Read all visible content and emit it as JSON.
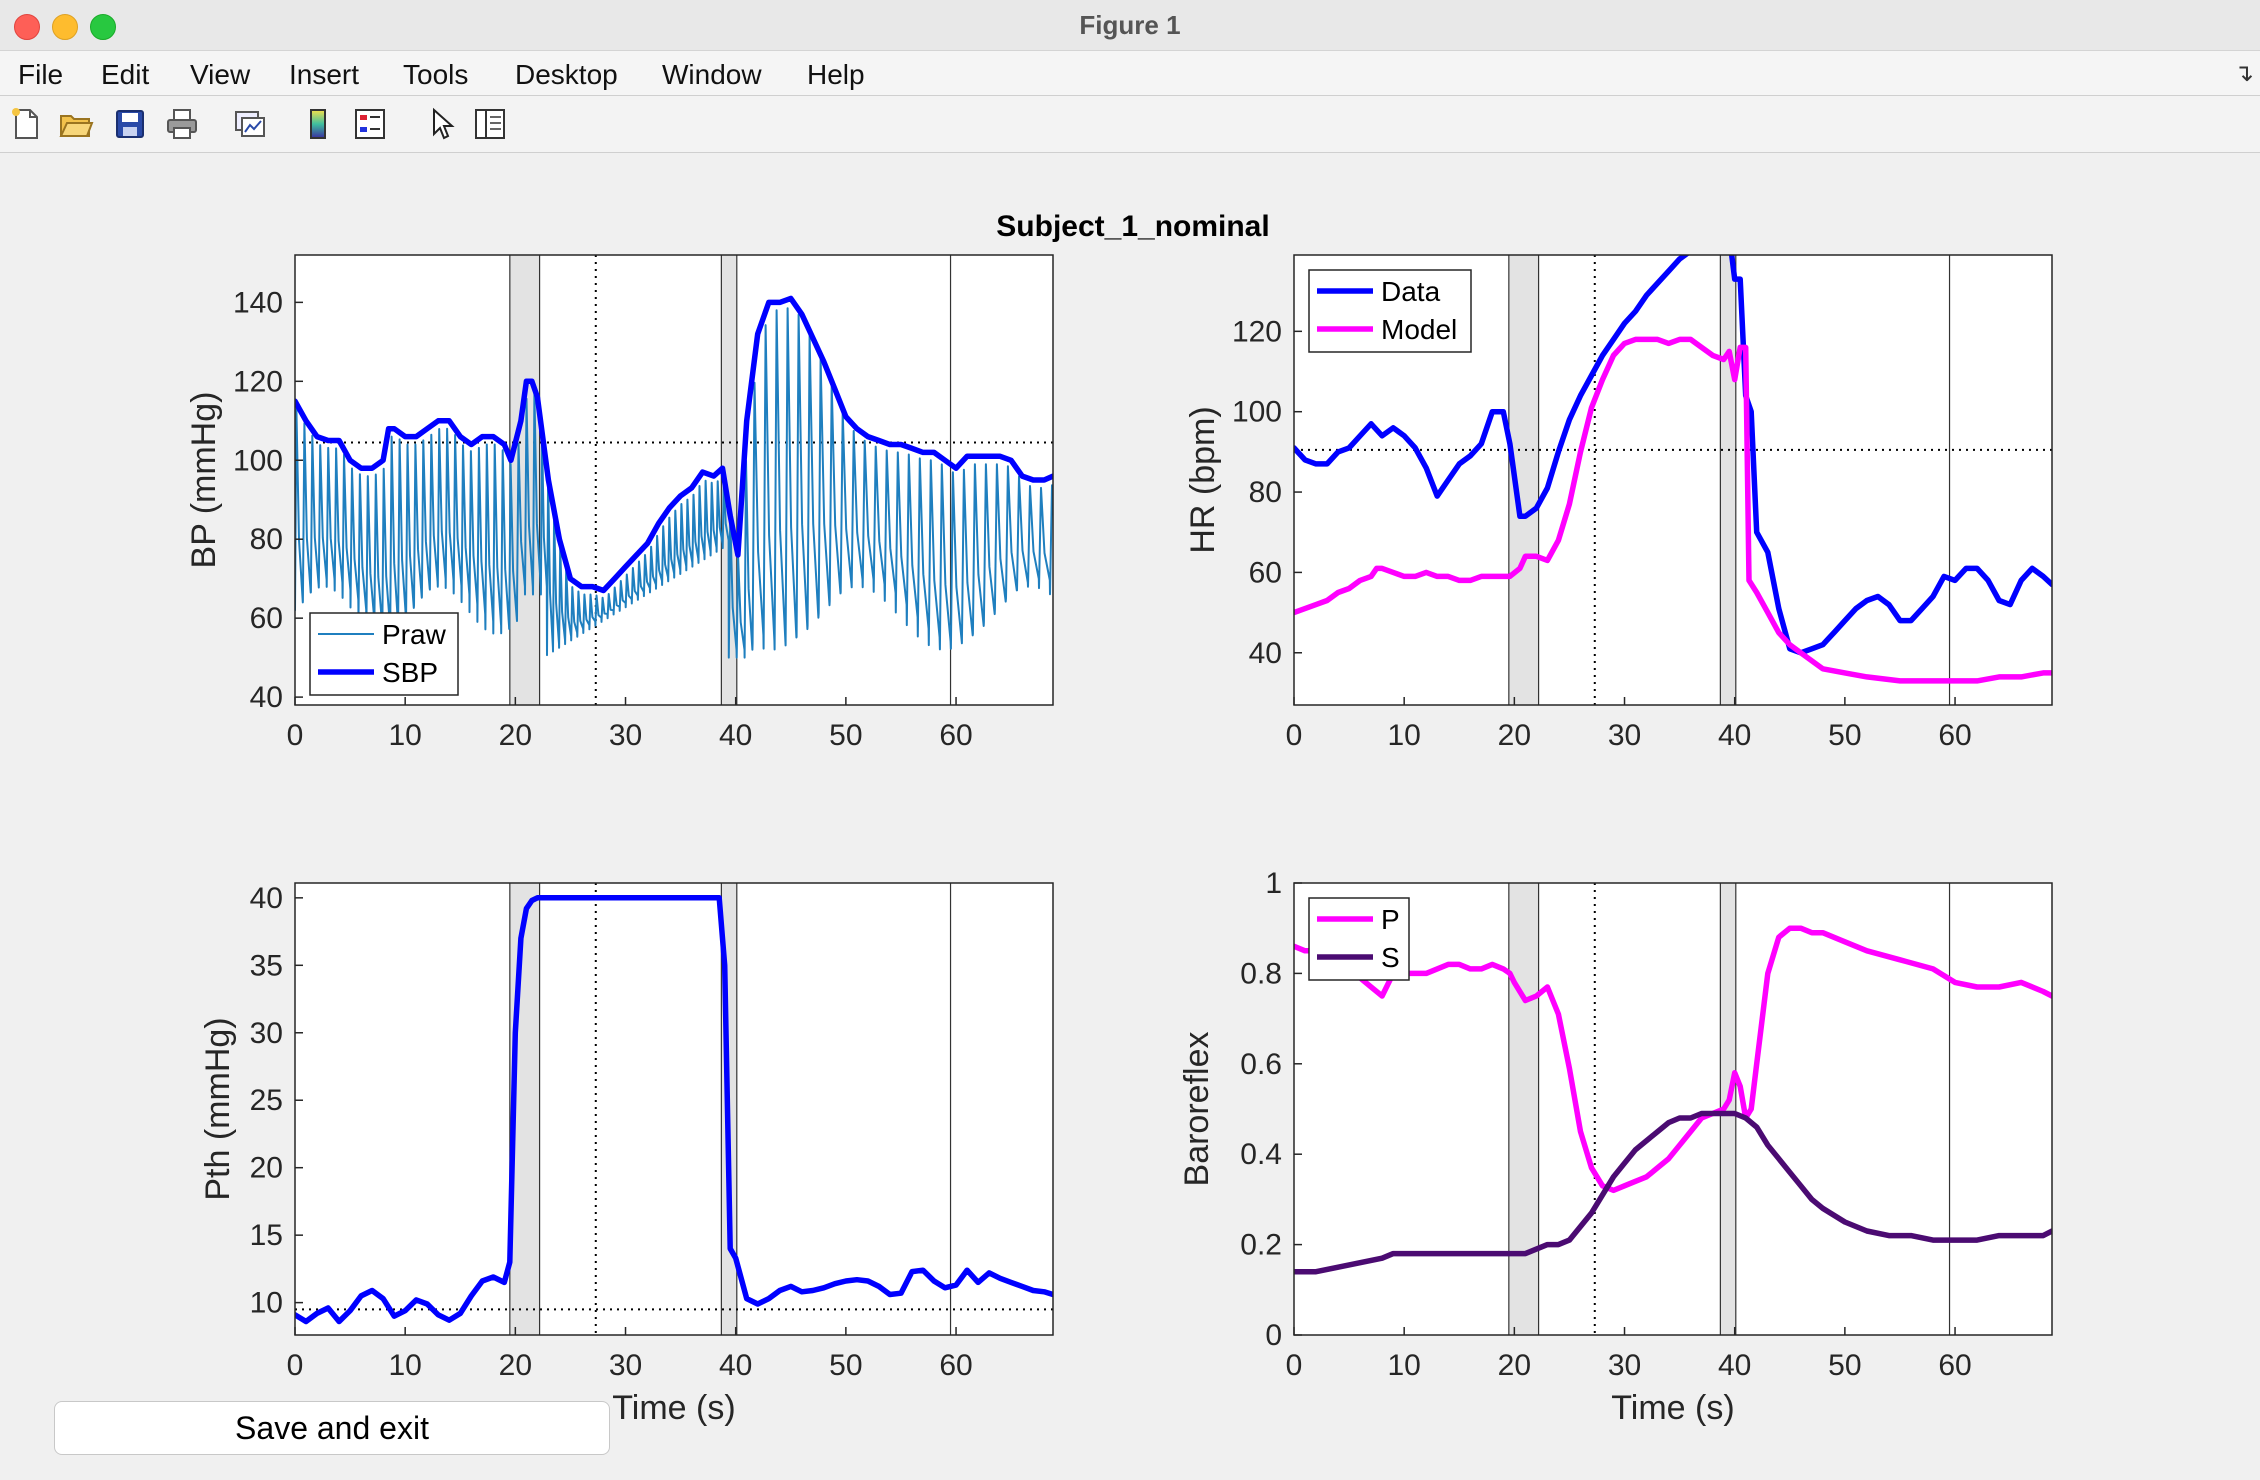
{
  "window": {
    "title": "Figure 1"
  },
  "menu": [
    "File",
    "Edit",
    "View",
    "Insert",
    "Tools",
    "Desktop",
    "Window",
    "Help"
  ],
  "toolbar_icons": [
    "new-figure-icon",
    "open-file-icon",
    "save-icon",
    "print-icon",
    "link-plot-icon",
    "colorbar-icon",
    "legend-icon",
    "pointer-icon",
    "property-inspector-icon"
  ],
  "save_button": {
    "label": "Save and exit"
  },
  "chart_data": {
    "suptitle": "Subject_1_nominal",
    "colors": {
      "blue": "#0000ff",
      "magenta": "#ff00ff",
      "raw": "#1f7fbf",
      "purple": "#4b0b72",
      "shade": "#e3e3e3",
      "axes_bg": "#ffffff"
    },
    "markers": {
      "shaded_spans": [
        [
          19.5,
          22.2
        ],
        [
          38.7,
          40.1
        ]
      ],
      "boundary_lines": [
        19.5,
        22.2,
        38.7,
        40.1,
        59.5
      ],
      "dotted_vertical": 27.3
    },
    "panels": [
      {
        "id": "bp",
        "type": "line",
        "xlabel": "",
        "ylabel": "BP (mmHg)",
        "xlim": [
          0,
          68.8
        ],
        "ylim": [
          38,
          152
        ],
        "xticks": [
          0,
          10,
          20,
          30,
          40,
          50,
          60
        ],
        "yticks": [
          40,
          60,
          80,
          100,
          120,
          140
        ],
        "hline": 104.5,
        "legend": {
          "location": "bottom-left",
          "entries": [
            "Praw",
            "SBP"
          ]
        },
        "series": [
          {
            "name": "Praw",
            "kind": "raw"
          },
          {
            "name": "SBP",
            "x": [
              0,
              1,
              2,
              3,
              4,
              5,
              6,
              7,
              8,
              8.5,
              9,
              10,
              11,
              12,
              13,
              14,
              15,
              16,
              17,
              18,
              19,
              19.6,
              20.5,
              21,
              21.5,
              22,
              23,
              24,
              25,
              26,
              27,
              28,
              29,
              30,
              31,
              32,
              33,
              34,
              35,
              36,
              37,
              38,
              38.8,
              39.5,
              40.2,
              41,
              42,
              43,
              44,
              45,
              46,
              47,
              48,
              49,
              50,
              51,
              52,
              53,
              54,
              55,
              56,
              57,
              58,
              59,
              60,
              61,
              62,
              63,
              64,
              65,
              66,
              67,
              68,
              68.8
            ],
            "y": [
              115,
              110,
              106,
              105,
              105,
              100,
              98,
              98,
              100,
              108,
              108,
              106,
              106,
              108,
              110,
              110,
              106,
              104,
              106,
              106,
              104,
              100,
              110,
              120,
              120,
              116,
              95,
              80,
              70,
              68,
              68,
              67,
              70,
              73,
              76,
              79,
              84,
              88,
              91,
              93,
              97,
              96,
              98,
              86,
              76,
              110,
              132,
              140,
              140,
              141,
              137,
              131,
              125,
              118,
              111,
              108,
              106,
              105,
              104,
              104,
              103,
              102,
              102,
              100,
              98,
              101,
              101,
              101,
              101,
              100,
              96,
              95,
              95,
              96
            ]
          }
        ]
      },
      {
        "id": "hr",
        "type": "line",
        "xlabel": "",
        "ylabel": "HR (bpm)",
        "xlim": [
          0,
          68.8
        ],
        "ylim": [
          27,
          139
        ],
        "xticks": [
          0,
          10,
          20,
          30,
          40,
          50,
          60
        ],
        "yticks": [
          40,
          60,
          80,
          100,
          120
        ],
        "hline": 90.5,
        "legend": {
          "location": "top-left",
          "entries": [
            "Data",
            "Model"
          ]
        },
        "series": [
          {
            "name": "Data",
            "x": [
              0,
              1,
              2,
              3,
              4,
              5,
              6,
              7,
              8,
              9,
              10,
              11,
              12,
              13,
              14,
              15,
              16,
              17,
              18,
              19,
              19.6,
              20.5,
              21,
              22,
              23,
              24,
              25,
              26,
              27,
              28,
              29,
              30,
              31,
              32,
              33,
              34,
              35,
              36,
              37,
              38,
              39,
              39.5,
              40,
              40.5,
              41,
              41.5,
              42,
              43,
              44,
              45,
              46,
              47,
              48,
              49,
              50,
              51,
              52,
              53,
              54,
              55,
              56,
              57,
              58,
              59,
              60,
              61,
              62,
              63,
              64,
              65,
              66,
              67,
              68,
              68.8
            ],
            "y": [
              91,
              88,
              87,
              87,
              90,
              91,
              94,
              97,
              94,
              96,
              94,
              91,
              86,
              79,
              83,
              87,
              89,
              92,
              100,
              100,
              92,
              74,
              74,
              76,
              81,
              90,
              98,
              104,
              109,
              114,
              118,
              122,
              125,
              129,
              132,
              135,
              138,
              140,
              141,
              143,
              144,
              144,
              133,
              133,
              104,
              100,
              70,
              65,
              51,
              41,
              40,
              41,
              42,
              45,
              48,
              51,
              53,
              54,
              52,
              48,
              48,
              51,
              54,
              59,
              58,
              61,
              61,
              58,
              53,
              52,
              58,
              61,
              59,
              57
            ]
          },
          {
            "name": "Model",
            "x": [
              0,
              1,
              2,
              3,
              4,
              5,
              6,
              7,
              7.5,
              8,
              9,
              10,
              11,
              12,
              13,
              14,
              15,
              16,
              17,
              18,
              19,
              19.6,
              20.5,
              21,
              22,
              23,
              24,
              25,
              26,
              27,
              28,
              29,
              30,
              31,
              32,
              33,
              34,
              35,
              36,
              37,
              38,
              39,
              39.5,
              40,
              40.5,
              41,
              41.3,
              42,
              43,
              44,
              45,
              46,
              47,
              48,
              50,
              52,
              55,
              58,
              60,
              62,
              64,
              66,
              68,
              68.8
            ],
            "y": [
              50,
              51,
              52,
              53,
              55,
              56,
              58,
              59,
              61,
              61,
              60,
              59,
              59,
              60,
              59,
              59,
              58,
              58,
              59,
              59,
              59,
              59,
              61,
              64,
              64,
              63,
              68,
              77,
              90,
              101,
              108,
              114,
              117,
              118,
              118,
              118,
              117,
              118,
              118,
              116,
              114,
              113,
              115,
              108,
              116,
              116,
              58,
              55,
              50,
              45,
              42,
              40,
              38,
              36,
              35,
              34,
              33,
              33,
              33,
              33,
              34,
              34,
              35,
              35
            ]
          }
        ]
      },
      {
        "id": "pth",
        "type": "line",
        "xlabel": "Time (s)",
        "ylabel": "Pth (mmHg)",
        "xlim": [
          0,
          68.8
        ],
        "ylim": [
          7.6,
          41.1
        ],
        "xticks": [
          0,
          10,
          20,
          30,
          40,
          50,
          60
        ],
        "yticks": [
          10,
          15,
          20,
          25,
          30,
          35,
          40
        ],
        "hline": 9.5,
        "legend": null,
        "series": [
          {
            "name": "Pth",
            "x": [
              0,
              1,
              2,
              3,
              4,
              5,
              6,
              7,
              8,
              9,
              10,
              11,
              12,
              13,
              14,
              15,
              16,
              17,
              18,
              19,
              19.5,
              20,
              20.5,
              21,
              21.5,
              22,
              23,
              25,
              30,
              35,
              38,
              38.5,
              39,
              39.5,
              40,
              41,
              42,
              43,
              44,
              45,
              46,
              47,
              48,
              49,
              50,
              51,
              52,
              53,
              54,
              55,
              56,
              57,
              58,
              59,
              60,
              61,
              62,
              63,
              64,
              65,
              66,
              67,
              68,
              68.8
            ],
            "y": [
              9.1,
              8.6,
              9.2,
              9.6,
              8.6,
              9.4,
              10.5,
              10.9,
              10.3,
              9.0,
              9.4,
              10.2,
              9.9,
              9.1,
              8.7,
              9.2,
              10.5,
              11.6,
              11.9,
              11.5,
              13,
              30,
              37,
              39.2,
              39.8,
              40,
              40,
              40,
              40,
              40,
              40,
              40,
              35,
              14,
              13.3,
              10.3,
              9.9,
              10.3,
              10.9,
              11.2,
              10.8,
              10.9,
              11.1,
              11.4,
              11.6,
              11.7,
              11.6,
              11.2,
              10.6,
              10.7,
              12.3,
              12.4,
              11.6,
              11.1,
              11.3,
              12.4,
              11.5,
              12.2,
              11.8,
              11.5,
              11.2,
              10.9,
              10.8,
              10.6
            ]
          }
        ]
      },
      {
        "id": "baro",
        "type": "line",
        "xlabel": "Time (s)",
        "ylabel": "Baroreflex",
        "xlim": [
          0,
          68.8
        ],
        "ylim": [
          0,
          1
        ],
        "xticks": [
          0,
          10,
          20,
          30,
          40,
          50,
          60
        ],
        "yticks": [
          0,
          0.2,
          0.4,
          0.6,
          0.8,
          1
        ],
        "hline": null,
        "legend": {
          "location": "top-left",
          "entries": [
            "P",
            "S"
          ]
        },
        "series": [
          {
            "name": "P",
            "x": [
              0,
              1,
              2,
              3,
              4,
              5,
              6,
              7,
              8,
              9,
              10,
              11,
              12,
              13,
              14,
              15,
              16,
              17,
              18,
              19,
              19.6,
              20,
              21,
              22,
              23,
              24,
              25,
              26,
              27,
              28,
              29,
              30,
              31,
              32,
              33,
              34,
              35,
              36,
              37,
              38,
              39,
              39.5,
              40,
              40.5,
              41,
              41.5,
              42,
              43,
              44,
              45,
              46,
              47,
              48,
              50,
              52,
              55,
              58,
              60,
              62,
              64,
              66,
              68,
              68.8
            ],
            "y": [
              0.86,
              0.85,
              0.85,
              0.84,
              0.82,
              0.8,
              0.79,
              0.77,
              0.75,
              0.8,
              0.8,
              0.8,
              0.8,
              0.81,
              0.82,
              0.82,
              0.81,
              0.81,
              0.82,
              0.81,
              0.8,
              0.78,
              0.74,
              0.75,
              0.77,
              0.71,
              0.59,
              0.45,
              0.37,
              0.33,
              0.32,
              0.33,
              0.34,
              0.35,
              0.37,
              0.39,
              0.42,
              0.45,
              0.48,
              0.49,
              0.5,
              0.52,
              0.58,
              0.55,
              0.48,
              0.5,
              0.6,
              0.8,
              0.88,
              0.9,
              0.9,
              0.89,
              0.89,
              0.87,
              0.85,
              0.83,
              0.81,
              0.78,
              0.77,
              0.77,
              0.78,
              0.76,
              0.75
            ]
          },
          {
            "name": "S",
            "x": [
              0,
              2,
              4,
              6,
              8,
              9,
              10,
              12,
              14,
              16,
              18,
              19.6,
              21,
              22,
              23,
              24,
              25,
              26,
              27,
              28,
              29,
              30,
              31,
              32,
              33,
              34,
              35,
              36,
              37,
              38,
              39,
              40,
              41,
              42,
              43,
              44,
              45,
              46,
              47,
              48,
              50,
              52,
              54,
              56,
              58,
              60,
              62,
              64,
              66,
              68,
              68.8
            ],
            "y": [
              0.14,
              0.14,
              0.15,
              0.16,
              0.17,
              0.18,
              0.18,
              0.18,
              0.18,
              0.18,
              0.18,
              0.18,
              0.18,
              0.19,
              0.2,
              0.2,
              0.21,
              0.24,
              0.27,
              0.31,
              0.35,
              0.38,
              0.41,
              0.43,
              0.45,
              0.47,
              0.48,
              0.48,
              0.49,
              0.49,
              0.49,
              0.49,
              0.48,
              0.46,
              0.42,
              0.39,
              0.36,
              0.33,
              0.3,
              0.28,
              0.25,
              0.23,
              0.22,
              0.22,
              0.21,
              0.21,
              0.21,
              0.22,
              0.22,
              0.22,
              0.23
            ]
          }
        ]
      }
    ]
  }
}
